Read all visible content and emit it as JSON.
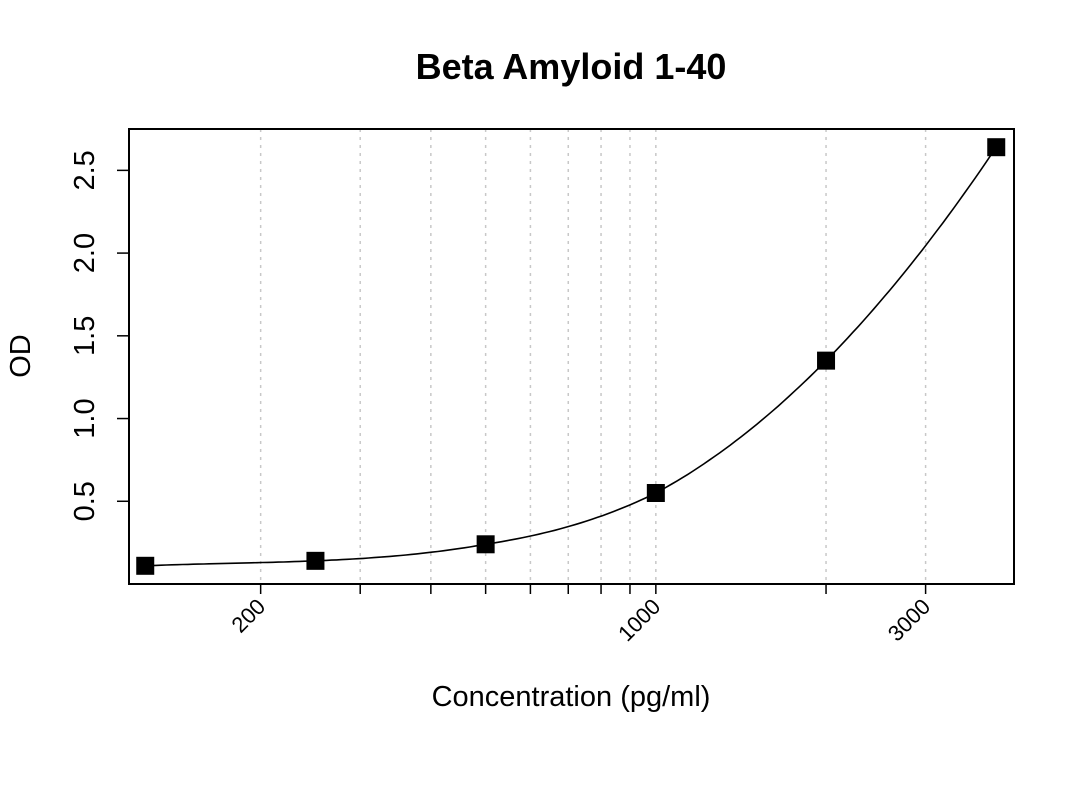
{
  "chart_data": {
    "type": "scatter",
    "title": "Beta Amyloid 1-40",
    "xlabel": "Concentration (pg/ml)",
    "ylabel": "OD",
    "x_scale": "log",
    "xlim": [
      117,
      4300
    ],
    "ylim": [
      0.0,
      2.75
    ],
    "x_ticks": [
      200,
      1000,
      3000
    ],
    "x_tick_labels": [
      "200",
      "1000",
      "3000"
    ],
    "y_ticks": [
      0.5,
      1.0,
      1.5,
      2.0,
      2.5
    ],
    "y_tick_labels": [
      "0.5",
      "1.0",
      "1.5",
      "2.0",
      "2.5"
    ],
    "x_gridlines": [
      200,
      300,
      400,
      500,
      600,
      700,
      800,
      900,
      1000,
      2000,
      3000
    ],
    "grid": "vertical dotted",
    "series": [
      {
        "marker": "square",
        "x": [
          125,
          250,
          500,
          1000,
          2000,
          4000
        ],
        "y": [
          0.11,
          0.14,
          0.24,
          0.55,
          1.35,
          2.64
        ]
      }
    ],
    "fit_curve": true,
    "colors": {
      "markers": "#000000",
      "curve": "#000000",
      "grid": "#c8c8c8"
    }
  }
}
